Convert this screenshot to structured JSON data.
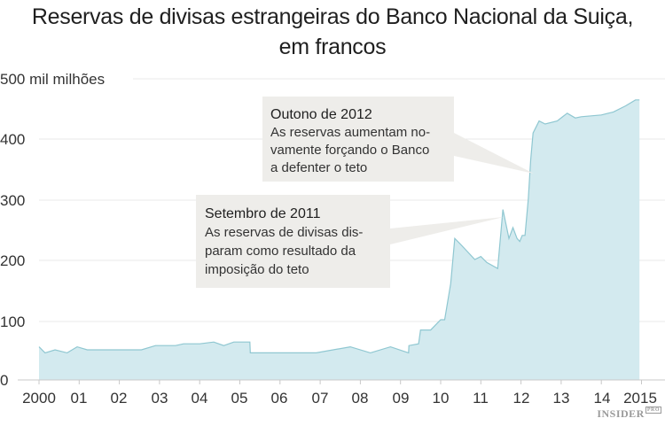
{
  "header": {
    "title_line1": "Reservas de divisas estrangeiras do Banco Nacional da Suiça,",
    "title_line2": "em francos"
  },
  "axis": {
    "y_ticks": [
      "500 mil milhões",
      "400",
      "300",
      "200",
      "100",
      "0"
    ],
    "x_ticks": [
      "2000",
      "01",
      "02",
      "03",
      "04",
      "05",
      "06",
      "07",
      "08",
      "09",
      "10",
      "11",
      "12",
      "13",
      "14",
      "2015"
    ]
  },
  "annotations": [
    {
      "title": "Outono de 2012",
      "lines": [
        "As reservas aumentam no-",
        "vamente forçando o Banco",
        "a defenter o teto"
      ]
    },
    {
      "title": "Setembro de 2011",
      "lines": [
        "As reservas de divisas dis-",
        "param como resultado da",
        "imposição do teto"
      ]
    }
  ],
  "logo": {
    "text": "INSIDER",
    "badge": "PRO"
  },
  "colors": {
    "fill": "#d3eaef",
    "line": "#8fc7d1",
    "grid": "#e8e8e8",
    "callout": "#eeedea"
  },
  "chart_data": {
    "type": "area",
    "title": "Reservas de divisas estrangeiras do Banco Nacional da Suiça, em francos",
    "xlabel": "",
    "ylabel": "mil milhões de francos",
    "ylim": [
      0,
      500
    ],
    "xlim": [
      2000,
      2015
    ],
    "grid": true,
    "legend": "none",
    "x_tick_labels": [
      "2000",
      "01",
      "02",
      "03",
      "04",
      "05",
      "06",
      "07",
      "08",
      "09",
      "10",
      "11",
      "12",
      "13",
      "14",
      "2015"
    ],
    "y_tick_labels": [
      "0",
      "100",
      "200",
      "300",
      "400",
      "500 mil milhões"
    ],
    "series": [
      {
        "name": "Reservas de divisas",
        "x": [
          2000.0,
          2000.15,
          2000.4,
          2000.7,
          2000.95,
          2001.2,
          2002.0,
          2002.55,
          2002.9,
          2003.4,
          2003.6,
          2004.0,
          2004.35,
          2004.6,
          2004.85,
          2005.25,
          2005.26,
          2006.0,
          2006.9,
          2007.75,
          2008.25,
          2008.75,
          2009.2,
          2009.21,
          2009.45,
          2009.5,
          2009.75,
          2010.0,
          2010.1,
          2010.25,
          2010.35,
          2010.5,
          2010.85,
          2011.0,
          2011.15,
          2011.42,
          2011.55,
          2011.7,
          2011.8,
          2011.9,
          2011.97,
          2012.03,
          2012.1,
          2012.18,
          2012.24,
          2012.3,
          2012.45,
          2012.6,
          2012.9,
          2013.15,
          2013.35,
          2013.5,
          2014.0,
          2014.3,
          2014.6,
          2014.85,
          2014.95
        ],
        "values": [
          55,
          45,
          50,
          45,
          55,
          50,
          50,
          50,
          57,
          57,
          60,
          60,
          63,
          57,
          63,
          63,
          45,
          45,
          45,
          55,
          45,
          55,
          45,
          57,
          60,
          83,
          83,
          100,
          100,
          160,
          235,
          225,
          200,
          205,
          195,
          185,
          283,
          235,
          253,
          235,
          230,
          240,
          240,
          300,
          365,
          410,
          430,
          425,
          430,
          443,
          435,
          437,
          440,
          445,
          455,
          465,
          465
        ]
      }
    ],
    "annotations": [
      {
        "label": "Setembro de 2011",
        "text": "As reservas de divisas disparam como resultado da imposição do teto",
        "x": 2011.55,
        "y": 283
      },
      {
        "label": "Outono de 2012",
        "text": "As reservas aumentam novamente forçando o Banco a defenter o teto",
        "x": 2012.3,
        "y": 410
      }
    ]
  }
}
